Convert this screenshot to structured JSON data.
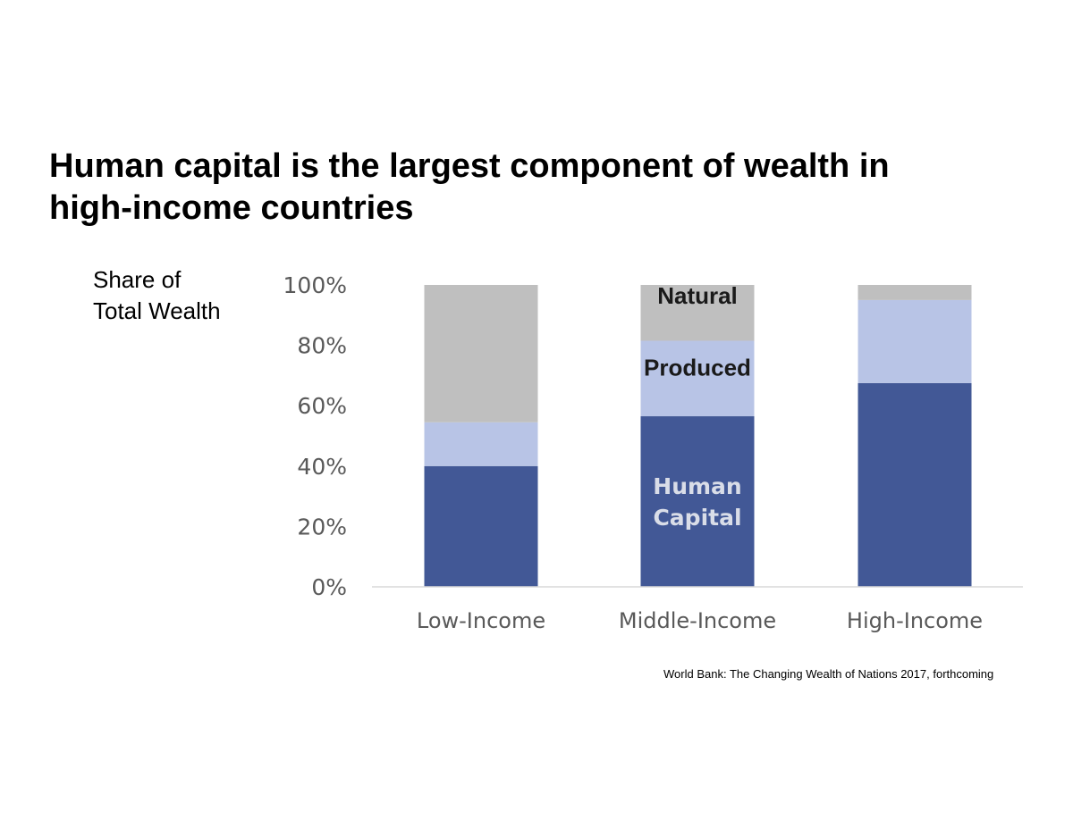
{
  "slide": {
    "title_line1": "Human capital is the largest component of wealth in",
    "title_line2": "high-income countries",
    "y_caption_line1": "Share of",
    "y_caption_line2": "Total Wealth",
    "source": "World Bank:  The Changing Wealth of Nations 2017, forthcoming"
  },
  "chart_data": {
    "type": "bar",
    "stacked": true,
    "title": "Human capital is the largest component of wealth in high-income countries",
    "xlabel": "",
    "ylabel": "Share of Total Wealth",
    "ylim": [
      0,
      100
    ],
    "y_ticks": [
      0,
      20,
      40,
      60,
      80,
      100
    ],
    "y_tick_labels": [
      "0%",
      "20%",
      "40%",
      "60%",
      "80%",
      "100%"
    ],
    "grid": false,
    "legend": "none",
    "categories": [
      "Low-Income",
      "Middle-Income",
      "High-Income"
    ],
    "series": [
      {
        "name": "Human Capital",
        "label_lines": [
          "Human",
          "Capital"
        ],
        "color": "#425896",
        "label_color": "#d9dde8",
        "values": [
          40,
          56.5,
          67.5
        ]
      },
      {
        "name": "Produced",
        "label_lines": [
          "Produced"
        ],
        "color": "#b8c4e6",
        "label_color": "#1a1a1a",
        "values": [
          14.5,
          25,
          27.5
        ]
      },
      {
        "name": "Natural",
        "label_lines": [
          "Natural"
        ],
        "color": "#bfbfbf",
        "label_color": "#1a1a1a",
        "values": [
          45.5,
          18.5,
          5
        ]
      }
    ],
    "segment_labels_on_category": "Middle-Income"
  }
}
